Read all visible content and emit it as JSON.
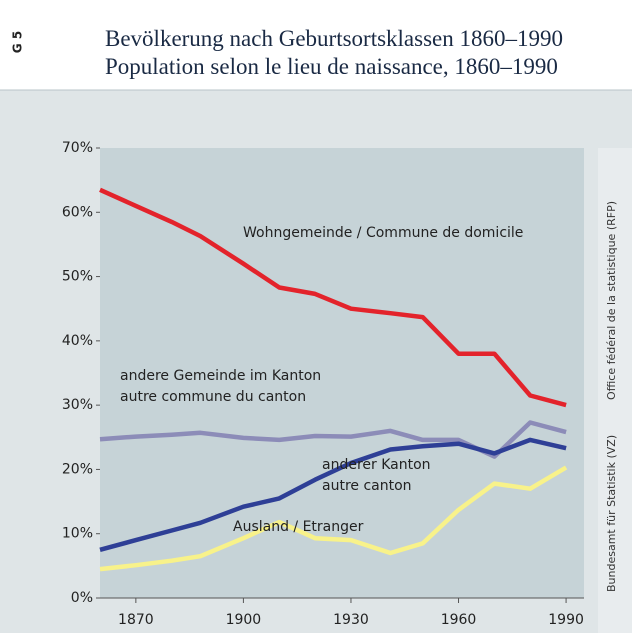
{
  "chart_data": {
    "type": "line",
    "figure_id": "G 5",
    "title": "Bevölkerung nach Geburtsortsklassen 1860–1990",
    "subtitle": "Population selon le lieu de naissance, 1860–1990",
    "source": [
      "Bundesamt für Statistik (VZ)",
      "Office fédéral de la statistique (RFP)"
    ],
    "x": [
      1860,
      1870,
      1880,
      1888,
      1900,
      1910,
      1920,
      1930,
      1941,
      1950,
      1960,
      1970,
      1980,
      1990
    ],
    "xlim": [
      1860,
      1995
    ],
    "xticks": [
      1870,
      1900,
      1930,
      1960,
      1990
    ],
    "ylim": [
      0,
      70
    ],
    "yticks": [
      {
        "value": 0,
        "label": "0%"
      },
      {
        "value": 10,
        "label": "10%"
      },
      {
        "value": 20,
        "label": "20%"
      },
      {
        "value": 30,
        "label": "30%"
      },
      {
        "value": 40,
        "label": "40%"
      },
      {
        "value": 50,
        "label": "50%"
      },
      {
        "value": 60,
        "label": "60%"
      },
      {
        "value": 70,
        "label": "70%"
      }
    ],
    "series": [
      {
        "name": [
          "Wohngemeinde / Commune de domicile"
        ],
        "color": "#e3232b",
        "values": [
          63.5,
          61,
          58.5,
          56.3,
          52,
          48.3,
          47.3,
          45,
          44.3,
          43.7,
          38,
          38,
          31.5,
          30
        ]
      },
      {
        "name": [
          "andere Gemeinde im Kanton",
          "autre commune du canton"
        ],
        "color": "#8c8cb8",
        "values": [
          24.7,
          25.1,
          25.4,
          25.7,
          24.9,
          24.6,
          25.2,
          25.1,
          26,
          24.6,
          24.6,
          22,
          27.3,
          25.8
        ]
      },
      {
        "name": [
          "anderer Kanton",
          "autre canton"
        ],
        "color": "#2e3f96",
        "values": [
          7.5,
          9,
          10.5,
          11.7,
          14.2,
          15.5,
          18.4,
          21,
          23.1,
          23.6,
          24,
          22.5,
          24.6,
          23.3
        ]
      },
      {
        "name": [
          "Ausland / Etranger"
        ],
        "color": "#f8f28a",
        "values": [
          4.5,
          5.1,
          5.8,
          6.5,
          9.3,
          11.8,
          9.3,
          9,
          7,
          8.5,
          13.7,
          17.8,
          17,
          20.3
        ]
      }
    ]
  }
}
